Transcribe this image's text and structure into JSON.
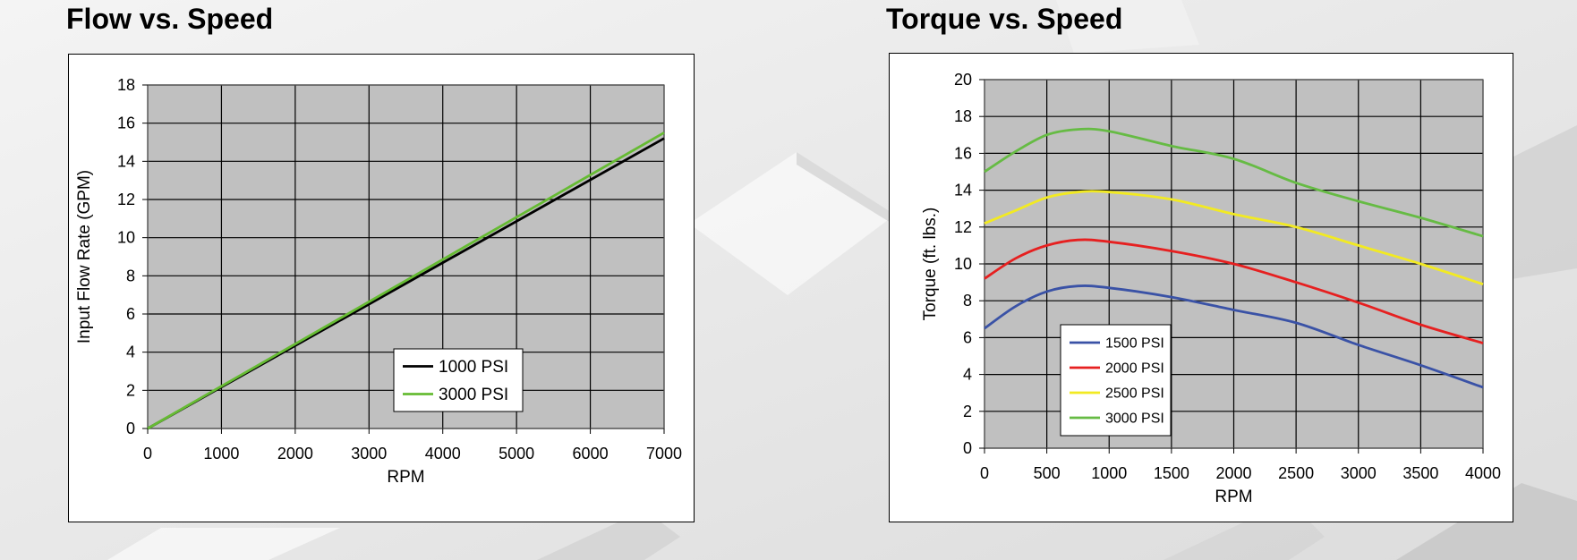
{
  "chart_data": [
    {
      "type": "line",
      "title": "Flow vs. Speed",
      "xlabel": "RPM",
      "ylabel": "Input Flow Rate (GPM)",
      "xlim": [
        0,
        7000
      ],
      "ylim": [
        0,
        18
      ],
      "xticks": [
        0,
        1000,
        2000,
        3000,
        4000,
        5000,
        6000,
        7000
      ],
      "yticks": [
        0,
        2,
        4,
        6,
        8,
        10,
        12,
        14,
        16,
        18
      ],
      "grid": true,
      "legend_position": "bottom-right",
      "series": [
        {
          "name": "1000 PSI",
          "color": "#000000",
          "x": [
            0,
            7000
          ],
          "y": [
            0,
            15.2
          ]
        },
        {
          "name": "3000 PSI",
          "color": "#66bb33",
          "x": [
            0,
            7000
          ],
          "y": [
            0,
            15.5
          ]
        }
      ]
    },
    {
      "type": "line",
      "title": "Torque vs. Speed",
      "xlabel": "RPM",
      "ylabel": "Torque (ft. lbs.)",
      "xlim": [
        0,
        4000
      ],
      "ylim": [
        0,
        20
      ],
      "xticks": [
        0,
        500,
        1000,
        1500,
        2000,
        2500,
        3000,
        3500,
        4000
      ],
      "yticks": [
        0,
        2,
        4,
        6,
        8,
        10,
        12,
        14,
        16,
        18,
        20
      ],
      "grid": true,
      "legend_position": "bottom-left",
      "series": [
        {
          "name": "1500 PSI",
          "color": "#3a52a6",
          "x": [
            0,
            250,
            500,
            750,
            1000,
            1500,
            2000,
            2500,
            3000,
            3500,
            4000
          ],
          "y": [
            6.5,
            7.7,
            8.5,
            8.8,
            8.7,
            8.2,
            7.5,
            6.8,
            5.6,
            4.5,
            3.3
          ]
        },
        {
          "name": "2000 PSI",
          "color": "#e62020",
          "x": [
            0,
            250,
            500,
            750,
            1000,
            1500,
            2000,
            2500,
            3000,
            3500,
            4000
          ],
          "y": [
            9.2,
            10.3,
            11.0,
            11.3,
            11.2,
            10.7,
            10.0,
            9.0,
            7.9,
            6.7,
            5.7
          ]
        },
        {
          "name": "2500 PSI",
          "color": "#f2ea22",
          "x": [
            0,
            250,
            500,
            750,
            1000,
            1500,
            2000,
            2500,
            3000,
            3500,
            4000
          ],
          "y": [
            12.2,
            12.9,
            13.6,
            13.9,
            13.9,
            13.5,
            12.7,
            12.0,
            11.0,
            10.0,
            8.9
          ]
        },
        {
          "name": "3000 PSI",
          "color": "#66bb44",
          "x": [
            0,
            250,
            500,
            750,
            1000,
            1500,
            2000,
            2500,
            3000,
            3500,
            4000
          ],
          "y": [
            15.0,
            16.1,
            17.0,
            17.3,
            17.2,
            16.4,
            15.7,
            14.4,
            13.4,
            12.5,
            11.5
          ]
        }
      ]
    }
  ]
}
